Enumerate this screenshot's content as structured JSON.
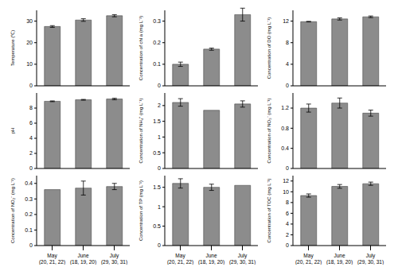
{
  "chart_data": [
    {
      "type": "bar",
      "y_label": "Temperature (℃)",
      "categories": [
        "May\n(20, 21, 22)",
        "June\n(18, 19, 20)",
        "July\n(29, 30, 31)"
      ],
      "values": [
        27.5,
        30.5,
        32.5
      ],
      "errors": [
        0.4,
        0.6,
        0.5
      ],
      "color": "#8c8c8c",
      "ylim": [
        0,
        35
      ],
      "yticks": [
        0,
        10,
        20,
        30
      ],
      "tick_labels": "y"
    },
    {
      "type": "bar",
      "y_label": "Concentration of chl a  (mg L⁻¹)",
      "categories": [
        "May\n(20, 21, 22)",
        "June\n(18, 19, 20)",
        "July\n(29, 30, 31)"
      ],
      "values": [
        0.1,
        0.17,
        0.33
      ],
      "errors": [
        0.01,
        0.005,
        0.03
      ],
      "color": "#8c8c8c",
      "ylim": [
        0,
        0.35
      ],
      "yticks": [
        0,
        0.1,
        0.2,
        0.3
      ],
      "tick_labels": "y"
    },
    {
      "type": "bar",
      "y_label": "Concentration of DO (mg L⁻¹)",
      "categories": [
        "May\n(20, 21, 22)",
        "June\n(18, 19, 20)",
        "July\n(29, 30, 31)"
      ],
      "values": [
        11.9,
        12.4,
        12.8
      ],
      "errors": [
        0.05,
        0.2,
        0.15
      ],
      "color": "#8c8c8c",
      "ylim": [
        0,
        14
      ],
      "yticks": [
        0,
        4,
        8,
        12
      ],
      "tick_labels": "y"
    },
    {
      "type": "bar",
      "y_label": "pH",
      "categories": [
        "May\n(20, 21, 22)",
        "June\n(18, 19, 20)",
        "July\n(29, 30, 31)"
      ],
      "values": [
        8.9,
        9.1,
        9.2
      ],
      "errors": [
        0.05,
        0.05,
        0.1
      ],
      "color": "#8c8c8c",
      "ylim": [
        0,
        10
      ],
      "yticks": [
        0,
        2,
        4,
        6,
        8
      ],
      "tick_labels": "y"
    },
    {
      "type": "bar",
      "y_label": "Concentration of NH₄⁺ (mg L⁻¹)",
      "categories": [
        "May\n(20, 21, 22)",
        "June\n(18, 19, 20)",
        "July\n(29, 30, 31)"
      ],
      "values": [
        2.1,
        1.85,
        2.05
      ],
      "errors": [
        0.12,
        0,
        0.1
      ],
      "color": "#8c8c8c",
      "ylim": [
        0,
        2.4
      ],
      "yticks": [
        0,
        0.5,
        1,
        1.5,
        2
      ],
      "tick_labels": "y"
    },
    {
      "type": "bar",
      "y_label": "Concentration of NO₃⁻ (mg L⁻¹)",
      "categories": [
        "May\n(20, 21, 22)",
        "June\n(18, 19, 20)",
        "July\n(29, 30, 31)"
      ],
      "values": [
        1.2,
        1.3,
        1.1
      ],
      "errors": [
        0.08,
        0.1,
        0.06
      ],
      "color": "#8c8c8c",
      "ylim": [
        0,
        1.5
      ],
      "yticks": [
        0,
        0.4,
        0.8,
        1.2
      ],
      "tick_labels": "y"
    },
    {
      "type": "bar",
      "y_label": "Concentration of NO₂⁻ (mg L⁻¹)",
      "categories": [
        "May\n(20, 21, 22)",
        "June\n(18, 19, 20)",
        "July\n(29, 30, 31)"
      ],
      "values": [
        0.36,
        0.37,
        0.38
      ],
      "errors": [
        0,
        0.045,
        0.02
      ],
      "color": "#8c8c8c",
      "ylim": [
        0,
        0.45
      ],
      "yticks": [
        0,
        0.1,
        0.2,
        0.3,
        0.4
      ]
    },
    {
      "type": "bar",
      "y_label": "Concentration of  TP (mg L⁻¹)",
      "categories": [
        "May\n(20, 21, 22)",
        "June\n(18, 19, 20)",
        "July\n(29, 30, 31)"
      ],
      "values": [
        1.6,
        1.5,
        1.55
      ],
      "errors": [
        0.12,
        0.08,
        0
      ],
      "color": "#8c8c8c",
      "ylim": [
        0,
        1.8
      ],
      "yticks": [
        0,
        0.5,
        1,
        1.5
      ]
    },
    {
      "type": "bar",
      "y_label": "Concentration of TOC (mg L⁻¹)",
      "categories": [
        "May\n(20, 21, 22)",
        "June\n(18, 19, 20)",
        "July\n(29, 30, 31)"
      ],
      "values": [
        9.3,
        11,
        11.5
      ],
      "errors": [
        0.3,
        0.35,
        0.3
      ],
      "color": "#8c8c8c",
      "ylim": [
        0,
        13
      ],
      "yticks": [
        0,
        2,
        4,
        6,
        8,
        10,
        12
      ]
    }
  ]
}
